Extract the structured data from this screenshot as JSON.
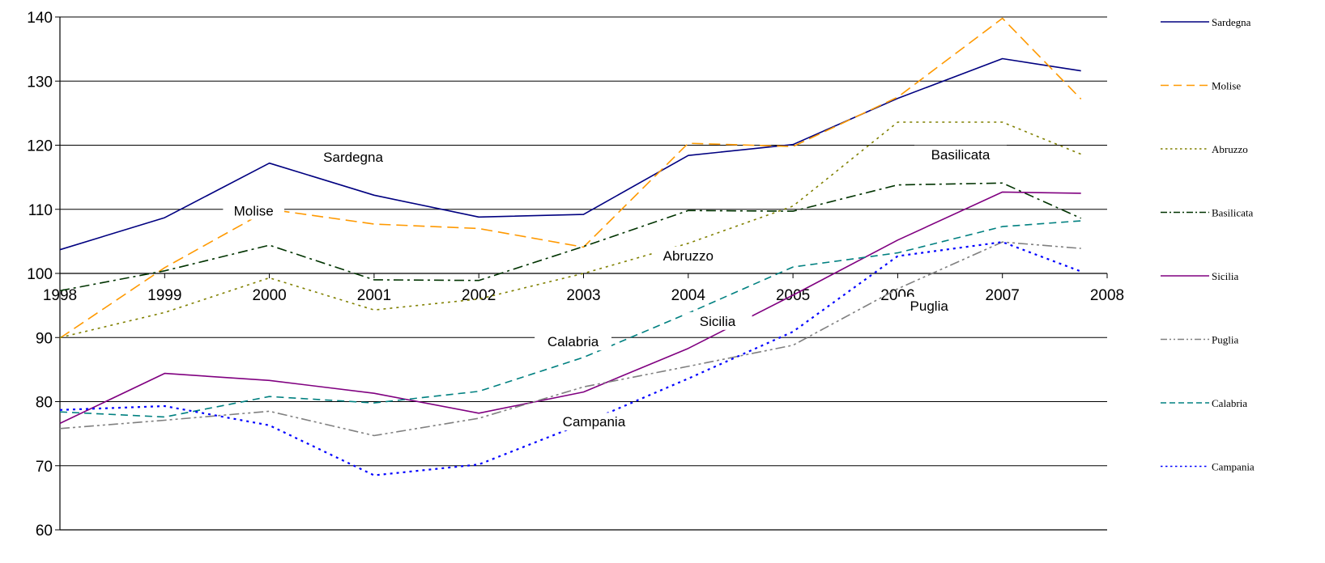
{
  "chart_data": {
    "type": "line",
    "title": "",
    "xlabel": "",
    "ylabel": "",
    "ylim": [
      60,
      140
    ],
    "yticks": [
      "60",
      "70",
      "80",
      "90",
      "100",
      "110",
      "120",
      "130",
      "140"
    ],
    "xticks": [
      "1998",
      "1999",
      "2000",
      "2001",
      "2002",
      "2003",
      "2004",
      "2005",
      "2006",
      "2007",
      "2008"
    ],
    "x": [
      1998,
      1999,
      2000,
      2001,
      2002,
      2003,
      2004,
      2005,
      2006,
      2007,
      2007.75
    ],
    "grid": "horizontal",
    "legend_position": "right",
    "series": [
      {
        "name": "Sardegna",
        "color": "#000080",
        "dash": "solid",
        "values": [
          103.7,
          108.7,
          117.2,
          112.2,
          108.8,
          109.2,
          118.4,
          120.1,
          127.3,
          133.5,
          131.6
        ]
      },
      {
        "name": "Molise",
        "color": "#FF9900",
        "dash": "longdash",
        "values": [
          89.9,
          100.9,
          110.0,
          107.7,
          107.0,
          104.1,
          120.3,
          119.8,
          127.5,
          139.8,
          127.2
        ]
      },
      {
        "name": "Abruzzo",
        "color": "#808000",
        "dash": "dot",
        "values": [
          90.0,
          93.9,
          99.3,
          94.3,
          96.0,
          100.0,
          104.7,
          110.5,
          123.6,
          123.6,
          118.6
        ]
      },
      {
        "name": "Basilicata",
        "color": "#003300",
        "dash": "dashdot",
        "values": [
          97.3,
          100.4,
          104.4,
          99.0,
          98.9,
          104.2,
          109.8,
          109.7,
          113.8,
          114.1,
          108.6
        ]
      },
      {
        "name": "Sicilia",
        "color": "#800080",
        "dash": "solid",
        "values": [
          76.6,
          84.4,
          83.3,
          81.3,
          78.2,
          81.5,
          88.3,
          96.6,
          105.2,
          112.7,
          112.5
        ]
      },
      {
        "name": "Puglia",
        "color": "#808080",
        "dash": "dashdotdot",
        "values": [
          75.8,
          77.1,
          78.5,
          74.7,
          77.4,
          82.3,
          85.5,
          88.8,
          97.6,
          104.9,
          103.9
        ]
      },
      {
        "name": "Calabria",
        "color": "#008080",
        "dash": "dash",
        "values": [
          78.4,
          77.6,
          80.8,
          79.8,
          81.6,
          86.9,
          93.8,
          101.0,
          103.2,
          107.3,
          108.2
        ]
      },
      {
        "name": "Campania",
        "color": "#0000FF",
        "dash": "dot",
        "values": [
          78.7,
          79.3,
          76.3,
          68.5,
          70.2,
          76.6,
          83.6,
          90.9,
          102.7,
          104.9,
          100.3
        ]
      }
    ],
    "annotations": [
      {
        "text": "Sardegna",
        "x": 2000.8,
        "y": 117.8
      },
      {
        "text": "Molise",
        "x": 1999.85,
        "y": 109.4
      },
      {
        "text": "Abruzzo",
        "x": 2004.0,
        "y": 102.4
      },
      {
        "text": "Basilicata",
        "x": 2006.6,
        "y": 118.2
      },
      {
        "text": "Puglia",
        "x": 2006.3,
        "y": 94.6
      },
      {
        "text": "Sicilia",
        "x": 2004.28,
        "y": 92.2
      },
      {
        "text": "Calabria",
        "x": 2002.9,
        "y": 89.0
      },
      {
        "text": "Campania",
        "x": 2003.1,
        "y": 76.5
      }
    ]
  }
}
